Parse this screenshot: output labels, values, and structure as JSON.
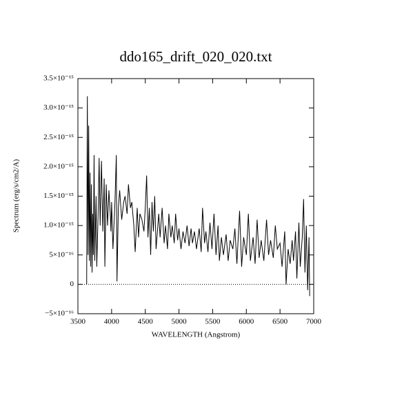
{
  "chart_data": {
    "type": "line",
    "title": "ddo165_drift_020_020.txt",
    "x_label": "WAVELENGTH (Angstrom)",
    "y_label": "Spectrum (erg/s/cm2/A)",
    "xlim": [
      3500,
      7000
    ],
    "ylim": [
      -5e-16,
      3.5e-15
    ],
    "xticks": [
      3500,
      4000,
      4500,
      5000,
      5500,
      6000,
      6500,
      7000
    ],
    "yticks": [
      {
        "value": -5e-16,
        "label": "−5×10⁻¹⁶"
      },
      0,
      {
        "value": 5e-16,
        "label": "5×10⁻¹⁶"
      },
      {
        "value": 1e-15,
        "label": "1.0×10⁻¹⁵"
      },
      {
        "value": 1.5e-15,
        "label": "1.5×10⁻¹⁵"
      },
      {
        "value": 2e-15,
        "label": "2.0×10⁻¹⁵"
      },
      {
        "value": 2.5e-15,
        "label": "2.5×10⁻¹⁵"
      },
      {
        "value": 3e-15,
        "label": "3.0×10⁻¹⁵"
      },
      {
        "value": 3.5e-15,
        "label": "3.5×10⁻¹⁵"
      }
    ],
    "color": "#000000",
    "x": [
      3630,
      3640,
      3650,
      3660,
      3670,
      3680,
      3690,
      3700,
      3710,
      3720,
      3730,
      3740,
      3750,
      3770,
      3780,
      3800,
      3815,
      3830,
      3850,
      3870,
      3890,
      3900,
      3920,
      3940,
      3960,
      3980,
      3990,
      4000,
      4020,
      4050,
      4070,
      4080,
      4100,
      4120,
      4150,
      4180,
      4200,
      4230,
      4250,
      4280,
      4300,
      4330,
      4350,
      4380,
      4400,
      4420,
      4450,
      4480,
      4500,
      4520,
      4540,
      4560,
      4580,
      4600,
      4620,
      4640,
      4660,
      4700,
      4720,
      4750,
      4780,
      4800,
      4830,
      4850,
      4880,
      4900,
      4930,
      4950,
      4980,
      5000,
      5030,
      5060,
      5090,
      5120,
      5150,
      5180,
      5200,
      5230,
      5260,
      5300,
      5330,
      5350,
      5380,
      5400,
      5430,
      5460,
      5490,
      5520,
      5550,
      5580,
      5600,
      5630,
      5660,
      5700,
      5730,
      5760,
      5800,
      5830,
      5860,
      5900,
      5930,
      5960,
      6000,
      6030,
      6060,
      6100,
      6130,
      6160,
      6190,
      6220,
      6260,
      6300,
      6330,
      6360,
      6400,
      6430,
      6460,
      6500,
      6530,
      6570,
      6590,
      6620,
      6650,
      6680,
      6700,
      6730,
      6750,
      6780,
      6800,
      6830,
      6850,
      6870,
      6890,
      6910,
      6930,
      6940
    ],
    "values": [
      0,
      3.2e-15,
      5e-16,
      2.7e-15,
      4e-16,
      1.9e-15,
      3e-16,
      1.7e-15,
      2e-16,
      1.2e-15,
      5e-16,
      2.2e-15,
      4e-16,
      1.5e-15,
      3e-16,
      1.2e-15,
      2.15e-15,
      1e-15,
      2.1e-15,
      9e-16,
      1.8e-15,
      3e-16,
      1.7e-15,
      1e-15,
      1.6e-15,
      1.2e-15,
      9e-16,
      1.4e-15,
      6e-16,
      1.4e-15,
      2.2e-15,
      5e-17,
      1.3e-15,
      1.6e-15,
      1.1e-15,
      1.4e-15,
      1.5e-15,
      1.2e-15,
      1.7e-15,
      1.3e-15,
      1.4e-15,
      1e-15,
      5.5e-16,
      1.3e-15,
      8e-16,
      1.2e-15,
      1.1e-15,
      9e-16,
      1.3e-15,
      1.85e-15,
      8e-16,
      1.3e-15,
      5e-16,
      1.4e-15,
      9e-16,
      1.5e-15,
      6e-16,
      1.2e-15,
      8e-16,
      1.3e-15,
      7e-16,
      1e-15,
      6e-16,
      1.2e-15,
      8e-16,
      1e-15,
      7e-16,
      1.2e-15,
      7.5e-16,
      9.5e-16,
      6e-16,
      9e-16,
      7e-16,
      1e-15,
      6.5e-16,
      9.5e-16,
      7e-16,
      9e-16,
      6e-16,
      9.5e-16,
      5.5e-16,
      1.3e-15,
      7e-16,
      9e-16,
      5.5e-16,
      1.05e-15,
      6e-16,
      1.2e-15,
      5e-16,
      1e-15,
      4e-16,
      8e-16,
      5e-16,
      8.5e-16,
      4e-16,
      7.5e-16,
      6e-16,
      9.5e-16,
      3.5e-16,
      1.25e-15,
      3e-16,
      8e-16,
      5e-16,
      1.2e-15,
      4e-16,
      8e-16,
      3.5e-16,
      1.1e-15,
      4.5e-16,
      7.5e-16,
      4e-16,
      1.1e-15,
      5e-16,
      7.5e-16,
      4.5e-16,
      1e-15,
      6e-16,
      7e-16,
      3e-16,
      9e-16,
      0,
      6e-16,
      3.5e-16,
      7.5e-16,
      4e-16,
      9e-16,
      1e-16,
      1.05e-15,
      3e-16,
      8e-16,
      1.45e-15,
      2e-16,
      1e-15,
      -1e-16,
      8e-16,
      -2e-16
    ]
  }
}
